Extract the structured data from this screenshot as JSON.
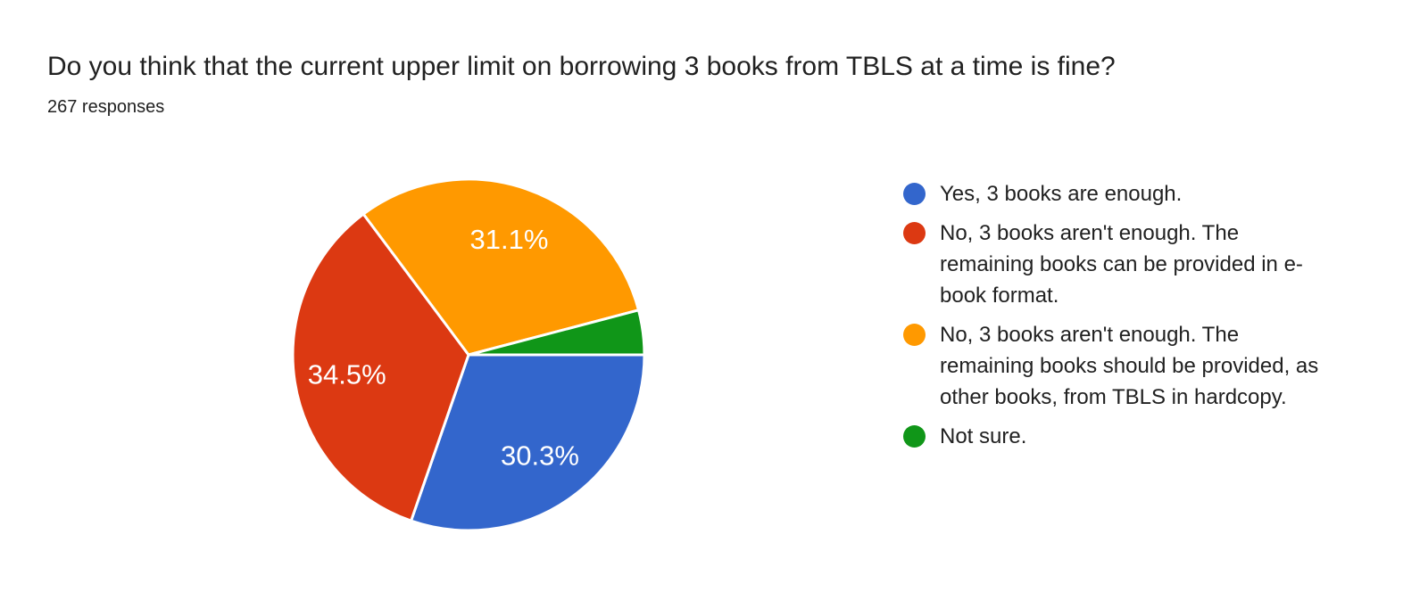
{
  "header": {
    "title": "Do you think that the current upper limit on borrowing 3 books from TBLS at a time is fine?",
    "responses_count": "267 responses"
  },
  "colors": {
    "background": "#FFFFFF",
    "text_primary": "#212121",
    "slice_label_text": "#FFFFFF",
    "blue": "#3366CC",
    "red": "#DC3912",
    "orange": "#FF9900",
    "green": "#109618"
  },
  "chart_data": {
    "type": "pie",
    "title": "Do you think that the current upper limit on borrowing 3 books from TBLS at a time is fine?",
    "subtitle": "267 responses",
    "total_responses": 267,
    "start_angle_deg": 90,
    "direction": "clockwise",
    "legend_position": "right",
    "slices": [
      {
        "key": "yes-enough",
        "label": "Yes, 3 books are enough.",
        "pct": 30.3,
        "pct_label": "30.3%",
        "color": "#3366CC"
      },
      {
        "key": "no-ebook",
        "label": "No, 3 books aren't enough. The remaining books can be provided in e-book format.",
        "pct": 34.5,
        "pct_label": "34.5%",
        "color": "#DC3912"
      },
      {
        "key": "no-hardcopy",
        "label": "No, 3 books aren't enough. The remaining books should be provided, as other books, from TBLS in hardcopy.",
        "pct": 31.1,
        "pct_label": "31.1%",
        "color": "#FF9900"
      },
      {
        "key": "not-sure",
        "label": "Not sure.",
        "pct": 4.1,
        "pct_label": "",
        "color": "#109618"
      }
    ]
  },
  "legend": {
    "items": [
      {
        "key": "yes-enough",
        "color": "#3366CC",
        "lines": [
          "Yes, 3 books are enough."
        ]
      },
      {
        "key": "no-ebook",
        "color": "#DC3912",
        "lines": [
          "No, 3 books aren't enough. The",
          "remaining books can be provided in e-",
          "book format."
        ]
      },
      {
        "key": "no-hardcopy",
        "color": "#FF9900",
        "lines": [
          "No, 3 books aren't enough. The",
          "remaining books should be provided, as",
          "other books, from TBLS in hardcopy."
        ]
      },
      {
        "key": "not-sure",
        "color": "#109618",
        "lines": [
          "Not sure."
        ]
      }
    ]
  }
}
